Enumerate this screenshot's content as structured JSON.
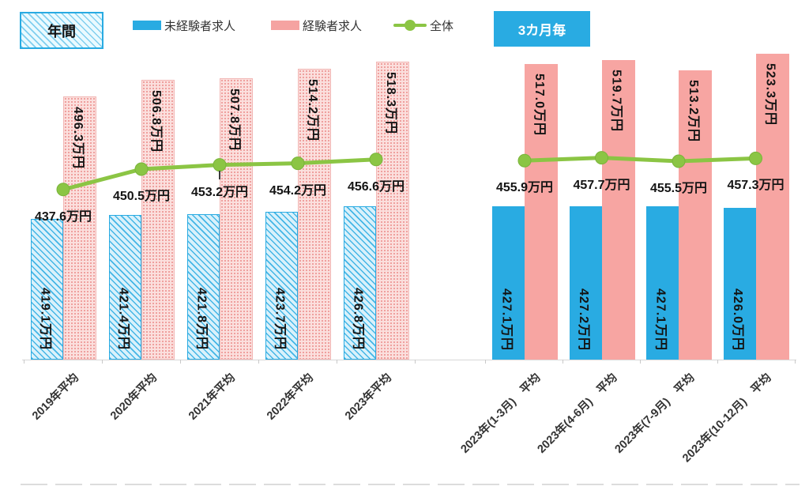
{
  "header": {
    "annual_badge": "年間",
    "quarterly_badge": "3カ月毎",
    "legend": [
      {
        "label": "未経験者求人",
        "color": "#29abe2",
        "type": "bar"
      },
      {
        "label": "経験者求人",
        "color": "#f5a3a1",
        "type": "bar"
      },
      {
        "label": "全体",
        "color": "#8bc544",
        "type": "line"
      }
    ]
  },
  "chart_data": {
    "type": "bar",
    "subtype": "grouped bars + overall line, two panels (annual vs quarterly)",
    "unit": "万円",
    "ylim": [
      330,
      560
    ],
    "grid": false,
    "legend_position": "top",
    "colors": {
      "blue": "#29abe2",
      "pink": "#f5a3a1",
      "green": "#8bc544"
    },
    "panels": [
      {
        "id": "annual",
        "badge": "年間",
        "bar_style": "patterned",
        "categories": [
          "2019年平均",
          "2020年平均",
          "2021年平均",
          "2022年平均",
          "2023年平均"
        ],
        "series": [
          {
            "name": "未経験者求人",
            "role": "bar-blue",
            "values": [
              419.1,
              421.4,
              421.8,
              423.7,
              426.8
            ]
          },
          {
            "name": "経験者求人",
            "role": "bar-pink",
            "values": [
              496.3,
              506.8,
              507.8,
              514.2,
              518.3
            ]
          },
          {
            "name": "全体",
            "role": "line-green",
            "values": [
              437.6,
              450.5,
              453.2,
              454.2,
              456.6
            ]
          }
        ],
        "annotations": [
          {
            "type": "leader",
            "index": 2
          }
        ]
      },
      {
        "id": "quarterly",
        "badge": "3カ月毎",
        "bar_style": "solid",
        "categories": [
          "2023年(1-3月)　平均",
          "2023年(4-6月)　平均",
          "2023年(7-9月)　平均",
          "2023年(10-12月)　平均"
        ],
        "series": [
          {
            "name": "未経験者求人",
            "role": "bar-blue",
            "values": [
              427.1,
              427.2,
              427.1,
              426.0
            ]
          },
          {
            "name": "経験者求人",
            "role": "bar-pink",
            "values": [
              517.0,
              519.7,
              513.2,
              523.3
            ]
          },
          {
            "name": "全体",
            "role": "line-green",
            "values": [
              455.9,
              457.7,
              455.5,
              457.3
            ]
          }
        ],
        "annotations": []
      }
    ]
  }
}
